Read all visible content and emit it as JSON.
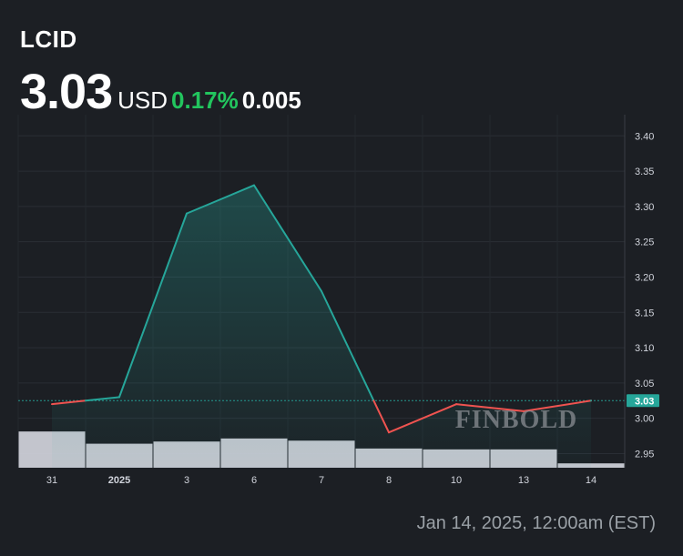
{
  "header": {
    "ticker": "LCID",
    "price": "3.03",
    "currency": "USD",
    "change_pct": "0.17%",
    "change_abs": "0.005"
  },
  "footer": {
    "timestamp": "Jan 14, 2025, 12:00am (EST)"
  },
  "colors": {
    "background": "#1c1f24",
    "up": "#26a69a",
    "down": "#ef5350",
    "positive_text": "#22c55e",
    "volume_bars": "#d1d4dc",
    "axis_text": "#d1d4dc",
    "watermark": "#8a8d93"
  },
  "watermark": "FINBOLD",
  "chart_data": {
    "type": "line",
    "categories": [
      "31",
      "2025",
      "3",
      "6",
      "7",
      "8",
      "10",
      "13",
      "14"
    ],
    "series": [
      {
        "values": [
          3.02,
          3.03,
          3.29,
          3.33,
          3.18,
          2.98,
          3.02,
          3.01,
          3.025
        ]
      }
    ],
    "reference_line": 3.025,
    "last_value_label": "3.03",
    "y_ticks": [
      "2.95",
      "3.00",
      "3.05",
      "3.10",
      "3.15",
      "3.20",
      "3.25",
      "3.30",
      "3.35",
      "3.40"
    ],
    "ylim": [
      2.93,
      3.43
    ],
    "volume": [
      0.83,
      0.55,
      0.6,
      0.67,
      0.62,
      0.44,
      0.42,
      0.42,
      0.1
    ],
    "grid": true,
    "title": "",
    "xlabel": "",
    "ylabel": ""
  }
}
